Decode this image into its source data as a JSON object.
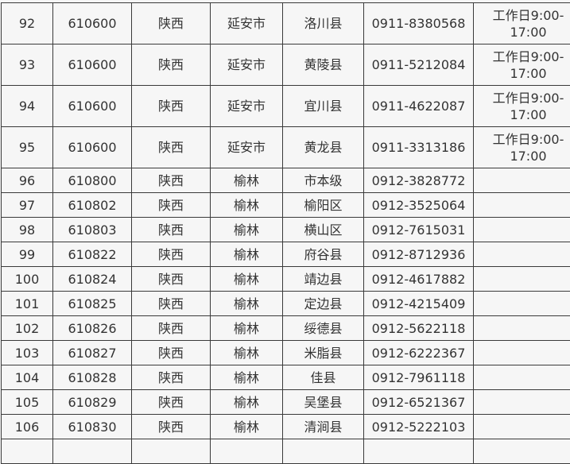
{
  "table": {
    "rows": [
      [
        "92",
        "610600",
        "陕西",
        "延安市",
        "洛川县",
        "0911-8380568",
        "工作日9:00-17:00"
      ],
      [
        "93",
        "610600",
        "陕西",
        "延安市",
        "黄陵县",
        "0911-5212084",
        "工作日9:00-17:00"
      ],
      [
        "94",
        "610600",
        "陕西",
        "延安市",
        "宜川县",
        "0911-4622087",
        "工作日9:00-17:00"
      ],
      [
        "95",
        "610600",
        "陕西",
        "延安市",
        "黄龙县",
        "0911-3313186",
        "工作日9:00-17:00"
      ],
      [
        "96",
        "610800",
        "陕西",
        "榆林",
        "市本级",
        "0912-3828772",
        ""
      ],
      [
        "97",
        "610802",
        "陕西",
        "榆林",
        "榆阳区",
        "0912-3525064",
        ""
      ],
      [
        "98",
        "610803",
        "陕西",
        "榆林",
        "横山区",
        "0912-7615031",
        ""
      ],
      [
        "99",
        "610822",
        "陕西",
        "榆林",
        "府谷县",
        "0912-8712936",
        ""
      ],
      [
        "100",
        "610824",
        "陕西",
        "榆林",
        "靖边县",
        "0912-4617882",
        ""
      ],
      [
        "101",
        "610825",
        "陕西",
        "榆林",
        "定边县",
        "0912-4215409",
        ""
      ],
      [
        "102",
        "610826",
        "陕西",
        "榆林",
        "绥德县",
        "0912-5622118",
        ""
      ],
      [
        "103",
        "610827",
        "陕西",
        "榆林",
        "米脂县",
        "0912-6222367",
        ""
      ],
      [
        "104",
        "610828",
        "陕西",
        "榆林",
        "佳县",
        "0912-7961118",
        ""
      ],
      [
        "105",
        "610829",
        "陕西",
        "榆林",
        "吴堡县",
        "0912-6521367",
        ""
      ],
      [
        "106",
        "610830",
        "陕西",
        "榆林",
        "清涧县",
        "0912-5222103",
        ""
      ]
    ]
  }
}
